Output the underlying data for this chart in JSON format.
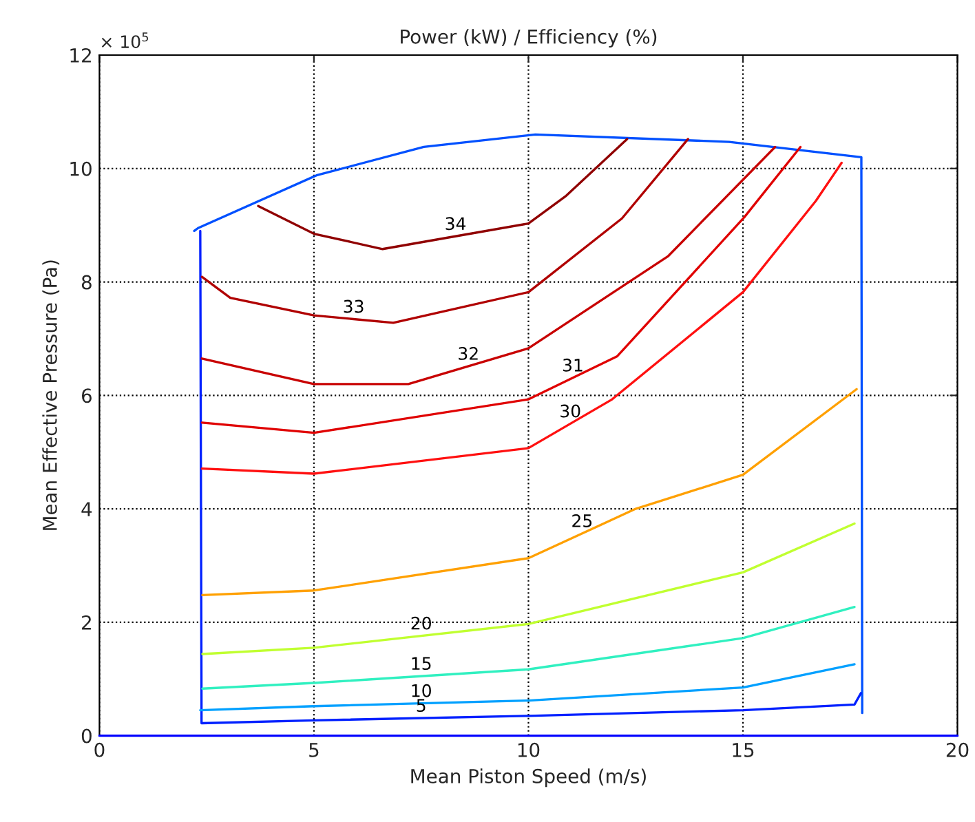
{
  "chart_data": {
    "type": "line",
    "title": "Power (kW) / Efficiency (%)",
    "xlabel": "Mean Piston Speed (m/s)",
    "ylabel": "Mean Effective Pressure (Pa)",
    "annotations": [
      "× 10$^{5}$"
    ],
    "xlim": [
      0,
      20
    ],
    "xticks": [
      0,
      5,
      10,
      15,
      20
    ],
    "ylim": [
      0,
      12
    ],
    "yticks": [
      0,
      2,
      4,
      6,
      8,
      10,
      12
    ],
    "grid": true,
    "legend": false,
    "line_style": "solid",
    "marker": "none",
    "series": [
      {
        "color": "#0000ff",
        "x": [
          0,
          5,
          10,
          15,
          20
        ],
        "values": [
          0,
          0,
          0,
          0,
          0
        ]
      },
      {
        "color": "#0050ff",
        "x": [
          2.21,
          2.3,
          5.06,
          7.56,
          10.16,
          14.68,
          17.76,
          17.78
        ],
        "values": [
          8.9,
          8.95,
          9.88,
          10.38,
          10.6,
          10.47,
          10.2,
          0.4
        ]
      },
      {
        "name": "5",
        "color": "#0020ff",
        "x": [
          2.35,
          2.38,
          5,
          10,
          15,
          17.6,
          17.75
        ],
        "values": [
          8.9,
          0.22,
          0.27,
          0.35,
          0.45,
          0.55,
          0.75
        ]
      },
      {
        "name": "10",
        "color": "#00a0ff",
        "x": [
          2.35,
          5,
          10,
          15,
          17.6
        ],
        "values": [
          0.45,
          0.52,
          0.62,
          0.85,
          1.26
        ]
      },
      {
        "name": "15",
        "color": "#30f0c0",
        "x": [
          2.4,
          5,
          10,
          15,
          17.6
        ],
        "values": [
          0.83,
          0.93,
          1.17,
          1.72,
          2.27
        ]
      },
      {
        "name": "20",
        "color": "#c0ff30",
        "x": [
          2.4,
          5,
          10,
          15,
          17.6
        ],
        "values": [
          1.44,
          1.55,
          1.97,
          2.88,
          3.74
        ]
      },
      {
        "name": "25",
        "color": "#ffa000",
        "x": [
          2.4,
          5,
          10,
          12.5,
          15,
          17.65
        ],
        "values": [
          2.48,
          2.56,
          3.13,
          4.0,
          4.6,
          6.11
        ]
      },
      {
        "name": "30",
        "color": "#ff1010",
        "x": [
          2.39,
          5,
          10,
          11.95,
          15,
          16.7,
          17.3
        ],
        "values": [
          4.71,
          4.62,
          5.07,
          5.93,
          7.82,
          9.43,
          10.1
        ]
      },
      {
        "name": "31",
        "color": "#e00000",
        "x": [
          2.39,
          5,
          10,
          12.07,
          15.03,
          16.34
        ],
        "values": [
          5.52,
          5.34,
          5.93,
          6.69,
          9.14,
          10.38
        ]
      },
      {
        "name": "32",
        "color": "#c80000",
        "x": [
          2.39,
          5,
          7.2,
          10,
          13.25,
          15.75
        ],
        "values": [
          6.65,
          6.2,
          6.2,
          6.83,
          8.45,
          10.38
        ]
      },
      {
        "name": "33",
        "color": "#b00000",
        "x": [
          2.39,
          3.05,
          5,
          6.85,
          10,
          12.18,
          13.72
        ],
        "values": [
          8.09,
          7.72,
          7.41,
          7.28,
          7.82,
          9.12,
          10.52
        ]
      },
      {
        "name": "34",
        "color": "#900000",
        "x": [
          3.7,
          5,
          6.6,
          10,
          10.88,
          12.3
        ],
        "values": [
          9.34,
          8.85,
          8.58,
          9.03,
          9.52,
          10.52
        ]
      }
    ]
  }
}
